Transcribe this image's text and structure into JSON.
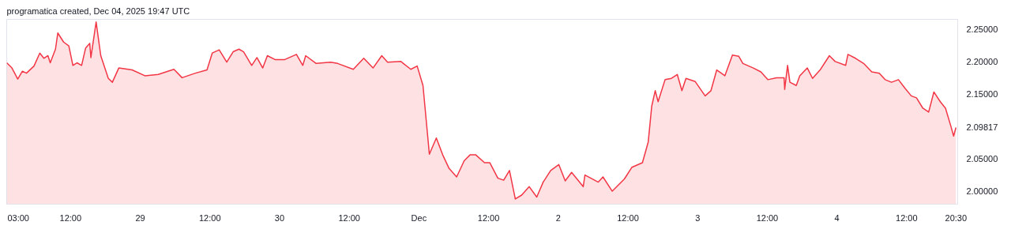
{
  "chart_data": {
    "type": "area",
    "color": "#f23645",
    "grid": false,
    "annotations": [
      "programatica created, Dec 04, 2025 19:47 UTC"
    ],
    "xlim": [
      "2025-11-28T01:00",
      "2025-12-04T20:48"
    ],
    "ylim": [
      1.98,
      2.265
    ],
    "xticks": [
      {
        "value": "2025-11-28T03:00",
        "label": "03:00"
      },
      {
        "value": "2025-11-28T12:00",
        "label": "12:00"
      },
      {
        "value": "2025-11-29T00:00",
        "label": "29"
      },
      {
        "value": "2025-11-29T12:00",
        "label": "12:00"
      },
      {
        "value": "2025-11-30T00:00",
        "label": "30"
      },
      {
        "value": "2025-11-30T12:00",
        "label": "12:00"
      },
      {
        "value": "2025-12-01T00:00",
        "label": "Dec"
      },
      {
        "value": "2025-12-01T12:00",
        "label": "12:00"
      },
      {
        "value": "2025-12-02T00:00",
        "label": "2"
      },
      {
        "value": "2025-12-02T12:00",
        "label": "12:00"
      },
      {
        "value": "2025-12-03T00:00",
        "label": "3"
      },
      {
        "value": "2025-12-03T12:00",
        "label": "12:00"
      },
      {
        "value": "2025-12-04T00:00",
        "label": "4"
      },
      {
        "value": "2025-12-04T12:00",
        "label": "12:00"
      },
      {
        "value": "2025-12-04T20:30",
        "label": "20:30"
      }
    ],
    "yticks": [
      {
        "value": 2.0,
        "label": "2.00000"
      },
      {
        "value": 2.05,
        "label": "2.05000"
      },
      {
        "value": 2.09817,
        "label": "2.09817"
      },
      {
        "value": 2.15,
        "label": "2.15000"
      },
      {
        "value": 2.2,
        "label": "2.20000"
      },
      {
        "value": 2.25,
        "label": "2.25000"
      }
    ],
    "x": [
      "2025-11-28T01:00",
      "2025-11-28T01:54",
      "2025-11-28T02:54",
      "2025-11-28T03:42",
      "2025-11-28T04:24",
      "2025-11-28T05:42",
      "2025-11-28T06:42",
      "2025-11-28T07:24",
      "2025-11-28T08:06",
      "2025-11-28T08:30",
      "2025-11-28T09:24",
      "2025-11-28T09:48",
      "2025-11-28T10:48",
      "2025-11-28T11:42",
      "2025-11-28T12:24",
      "2025-11-28T13:06",
      "2025-11-28T13:54",
      "2025-11-28T14:36",
      "2025-11-28T15:18",
      "2025-11-28T15:30",
      "2025-11-28T16:24",
      "2025-11-28T17:12",
      "2025-11-28T18:30",
      "2025-11-28T19:12",
      "2025-11-28T20:18",
      "2025-11-28T22:36",
      "2025-11-29T00:48",
      "2025-11-29T03:06",
      "2025-11-29T05:48",
      "2025-11-29T07:12",
      "2025-11-29T09:30",
      "2025-11-29T11:30",
      "2025-11-29T12:24",
      "2025-11-29T13:36",
      "2025-11-29T14:54",
      "2025-11-29T16:00",
      "2025-11-29T17:00",
      "2025-11-29T17:48",
      "2025-11-29T19:12",
      "2025-11-29T20:06",
      "2025-11-29T21:06",
      "2025-11-29T21:54",
      "2025-11-29T23:12",
      "2025-11-30T00:54",
      "2025-11-30T02:54",
      "2025-11-30T04:00",
      "2025-11-30T04:30",
      "2025-11-30T06:18",
      "2025-11-30T08:48",
      "2025-11-30T10:00",
      "2025-11-30T12:42",
      "2025-11-30T14:30",
      "2025-11-30T16:06",
      "2025-11-30T17:36",
      "2025-11-30T18:36",
      "2025-11-30T20:54",
      "2025-11-30T22:36",
      "2025-11-30T23:42",
      "2025-12-01T00:42",
      "2025-12-01T01:48",
      "2025-12-01T03:00",
      "2025-12-01T04:06",
      "2025-12-01T05:12",
      "2025-12-01T06:30",
      "2025-12-01T07:48",
      "2025-12-01T08:48",
      "2025-12-01T09:48",
      "2025-12-01T11:18",
      "2025-12-01T12:12",
      "2025-12-01T13:36",
      "2025-12-01T14:36",
      "2025-12-01T15:36",
      "2025-12-01T16:36",
      "2025-12-01T17:42",
      "2025-12-01T19:00",
      "2025-12-01T20:18",
      "2025-12-01T21:24",
      "2025-12-01T22:42",
      "2025-12-02T00:06",
      "2025-12-02T01:12",
      "2025-12-02T02:18",
      "2025-12-02T04:18",
      "2025-12-02T04:36",
      "2025-12-02T06:54",
      "2025-12-02T07:42",
      "2025-12-02T09:18",
      "2025-12-02T11:24",
      "2025-12-02T12:42",
      "2025-12-02T14:30",
      "2025-12-02T15:30",
      "2025-12-02T16:06",
      "2025-12-02T16:42",
      "2025-12-02T17:12",
      "2025-12-02T18:24",
      "2025-12-02T19:30",
      "2025-12-02T20:30",
      "2025-12-02T21:18",
      "2025-12-02T22:00",
      "2025-12-02T23:36",
      "2025-12-03T01:18",
      "2025-12-03T02:18",
      "2025-12-03T03:18",
      "2025-12-03T04:42",
      "2025-12-03T06:00",
      "2025-12-03T07:06",
      "2025-12-03T07:48",
      "2025-12-03T09:36",
      "2025-12-03T10:54",
      "2025-12-03T12:06",
      "2025-12-03T13:36",
      "2025-12-03T14:54",
      "2025-12-03T15:00",
      "2025-12-03T15:30",
      "2025-12-03T15:54",
      "2025-12-03T17:00",
      "2025-12-03T17:36",
      "2025-12-03T18:54",
      "2025-12-03T19:48",
      "2025-12-03T21:06",
      "2025-12-03T22:42",
      "2025-12-03T23:42",
      "2025-12-04T01:30",
      "2025-12-04T01:54",
      "2025-12-04T03:12",
      "2025-12-04T04:36",
      "2025-12-04T06:00",
      "2025-12-04T07:18",
      "2025-12-04T08:18",
      "2025-12-04T09:24",
      "2025-12-04T10:36",
      "2025-12-04T11:42",
      "2025-12-04T12:48",
      "2025-12-04T13:42",
      "2025-12-04T14:48",
      "2025-12-04T15:48",
      "2025-12-04T16:42",
      "2025-12-04T17:48",
      "2025-12-04T18:42",
      "2025-12-04T19:36",
      "2025-12-04T20:06",
      "2025-12-04T20:30"
    ],
    "values": [
      2.198,
      2.19,
      2.173,
      2.185,
      2.182,
      2.193,
      2.213,
      2.205,
      2.209,
      2.198,
      2.219,
      2.244,
      2.23,
      2.224,
      2.194,
      2.198,
      2.194,
      2.221,
      2.228,
      2.206,
      2.261,
      2.209,
      2.174,
      2.168,
      2.19,
      2.187,
      2.178,
      2.18,
      2.188,
      2.175,
      2.182,
      2.187,
      2.213,
      2.218,
      2.199,
      2.215,
      2.219,
      2.215,
      2.194,
      2.206,
      2.19,
      2.209,
      2.203,
      2.203,
      2.211,
      2.194,
      2.209,
      2.197,
      2.199,
      2.197,
      2.188,
      2.205,
      2.19,
      2.209,
      2.199,
      2.2,
      2.188,
      2.193,
      2.163,
      2.057,
      2.082,
      2.056,
      2.035,
      2.022,
      2.047,
      2.056,
      2.056,
      2.044,
      2.044,
      2.02,
      2.017,
      2.032,
      1.988,
      1.994,
      2.007,
      1.991,
      2.014,
      2.032,
      2.041,
      2.016,
      2.029,
      2.007,
      2.025,
      2.014,
      2.022,
      2.0,
      2.019,
      2.037,
      2.044,
      2.076,
      2.131,
      2.155,
      2.138,
      2.172,
      2.174,
      2.18,
      2.155,
      2.174,
      2.169,
      2.147,
      2.155,
      2.187,
      2.178,
      2.21,
      2.208,
      2.197,
      2.19,
      2.184,
      2.172,
      2.175,
      2.175,
      2.157,
      2.194,
      2.168,
      2.163,
      2.178,
      2.19,
      2.174,
      2.187,
      2.209,
      2.2,
      2.194,
      2.211,
      2.205,
      2.197,
      2.184,
      2.182,
      2.172,
      2.168,
      2.172,
      2.159,
      2.147,
      2.144,
      2.128,
      2.122,
      2.153,
      2.138,
      2.128,
      2.101,
      2.085,
      2.09817
    ]
  }
}
